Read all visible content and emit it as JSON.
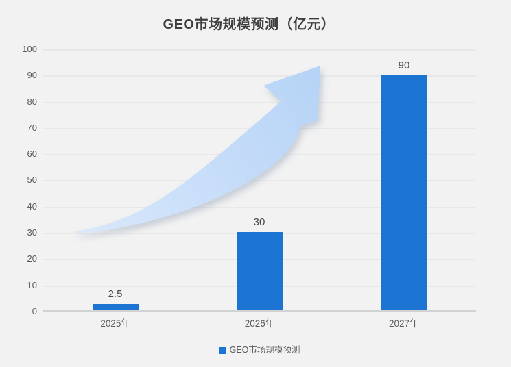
{
  "chart_data": {
    "type": "bar",
    "title": "GEO市场规模预测（亿元）",
    "categories": [
      "2025年",
      "2026年",
      "2027年"
    ],
    "values": [
      2.5,
      30,
      90
    ],
    "value_labels": [
      "2.5",
      "30",
      "90"
    ],
    "ylim": [
      0,
      100
    ],
    "ytick_step": 10,
    "yticks": [
      "100",
      "90",
      "80",
      "70",
      "60",
      "50",
      "40",
      "30",
      "20",
      "10",
      "0"
    ],
    "grid": true,
    "legend_position": "bottom",
    "legend": [
      {
        "label": "GEO市场规模预测",
        "color": "#1b74d1"
      }
    ],
    "bar_color": "#1b74d1",
    "background_color": "#f2f2f2",
    "annotations": [
      {
        "name": "growth-arrow",
        "description": "curved upward trend arrow",
        "color": "#bcd8f7"
      }
    ]
  }
}
